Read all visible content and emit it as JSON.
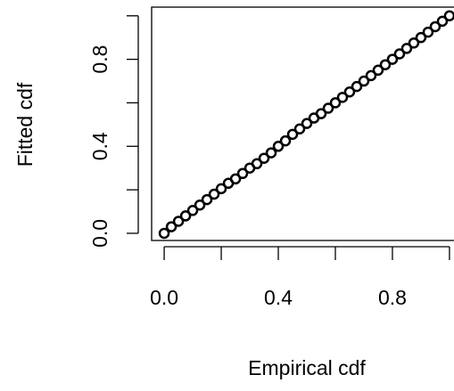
{
  "chart_data": {
    "type": "scatter",
    "xlabel": "Empirical cdf",
    "ylabel": "Fitted cdf",
    "x": [
      0,
      0.025,
      0.05,
      0.075,
      0.1,
      0.125,
      0.15,
      0.175,
      0.2,
      0.225,
      0.25,
      0.275,
      0.3,
      0.325,
      0.35,
      0.375,
      0.4,
      0.425,
      0.45,
      0.475,
      0.5,
      0.525,
      0.55,
      0.575,
      0.6,
      0.625,
      0.65,
      0.675,
      0.7,
      0.725,
      0.75,
      0.775,
      0.8,
      0.825,
      0.85,
      0.875,
      0.9,
      0.925,
      0.95,
      0.975,
      1
    ],
    "values": [
      0,
      0.03,
      0.055,
      0.08,
      0.105,
      0.13,
      0.155,
      0.18,
      0.205,
      0.23,
      0.25,
      0.275,
      0.3,
      0.32,
      0.345,
      0.37,
      0.4,
      0.425,
      0.455,
      0.48,
      0.505,
      0.53,
      0.55,
      0.575,
      0.6,
      0.625,
      0.65,
      0.675,
      0.7,
      0.725,
      0.75,
      0.775,
      0.8,
      0.825,
      0.85,
      0.875,
      0.9,
      0.925,
      0.95,
      0.975,
      1
    ],
    "color": "#000000",
    "xlim": [
      -0.044,
      1.044
    ],
    "ylim": [
      -0.033,
      1.04
    ],
    "xticks": [
      {
        "value": 0,
        "label": "0.0"
      },
      {
        "value": 0.2,
        "label": null
      },
      {
        "value": 0.4,
        "label": "0.4"
      },
      {
        "value": 0.6,
        "label": null
      },
      {
        "value": 0.8,
        "label": "0.8"
      },
      {
        "value": 1,
        "label": null
      }
    ],
    "yticks": [
      {
        "value": 0,
        "label": "0.0"
      },
      {
        "value": 0.2,
        "label": null
      },
      {
        "value": 0.4,
        "label": "0.4"
      },
      {
        "value": 0.6,
        "label": null
      },
      {
        "value": 0.8,
        "label": "0.8"
      },
      {
        "value": 1,
        "label": null
      }
    ]
  }
}
